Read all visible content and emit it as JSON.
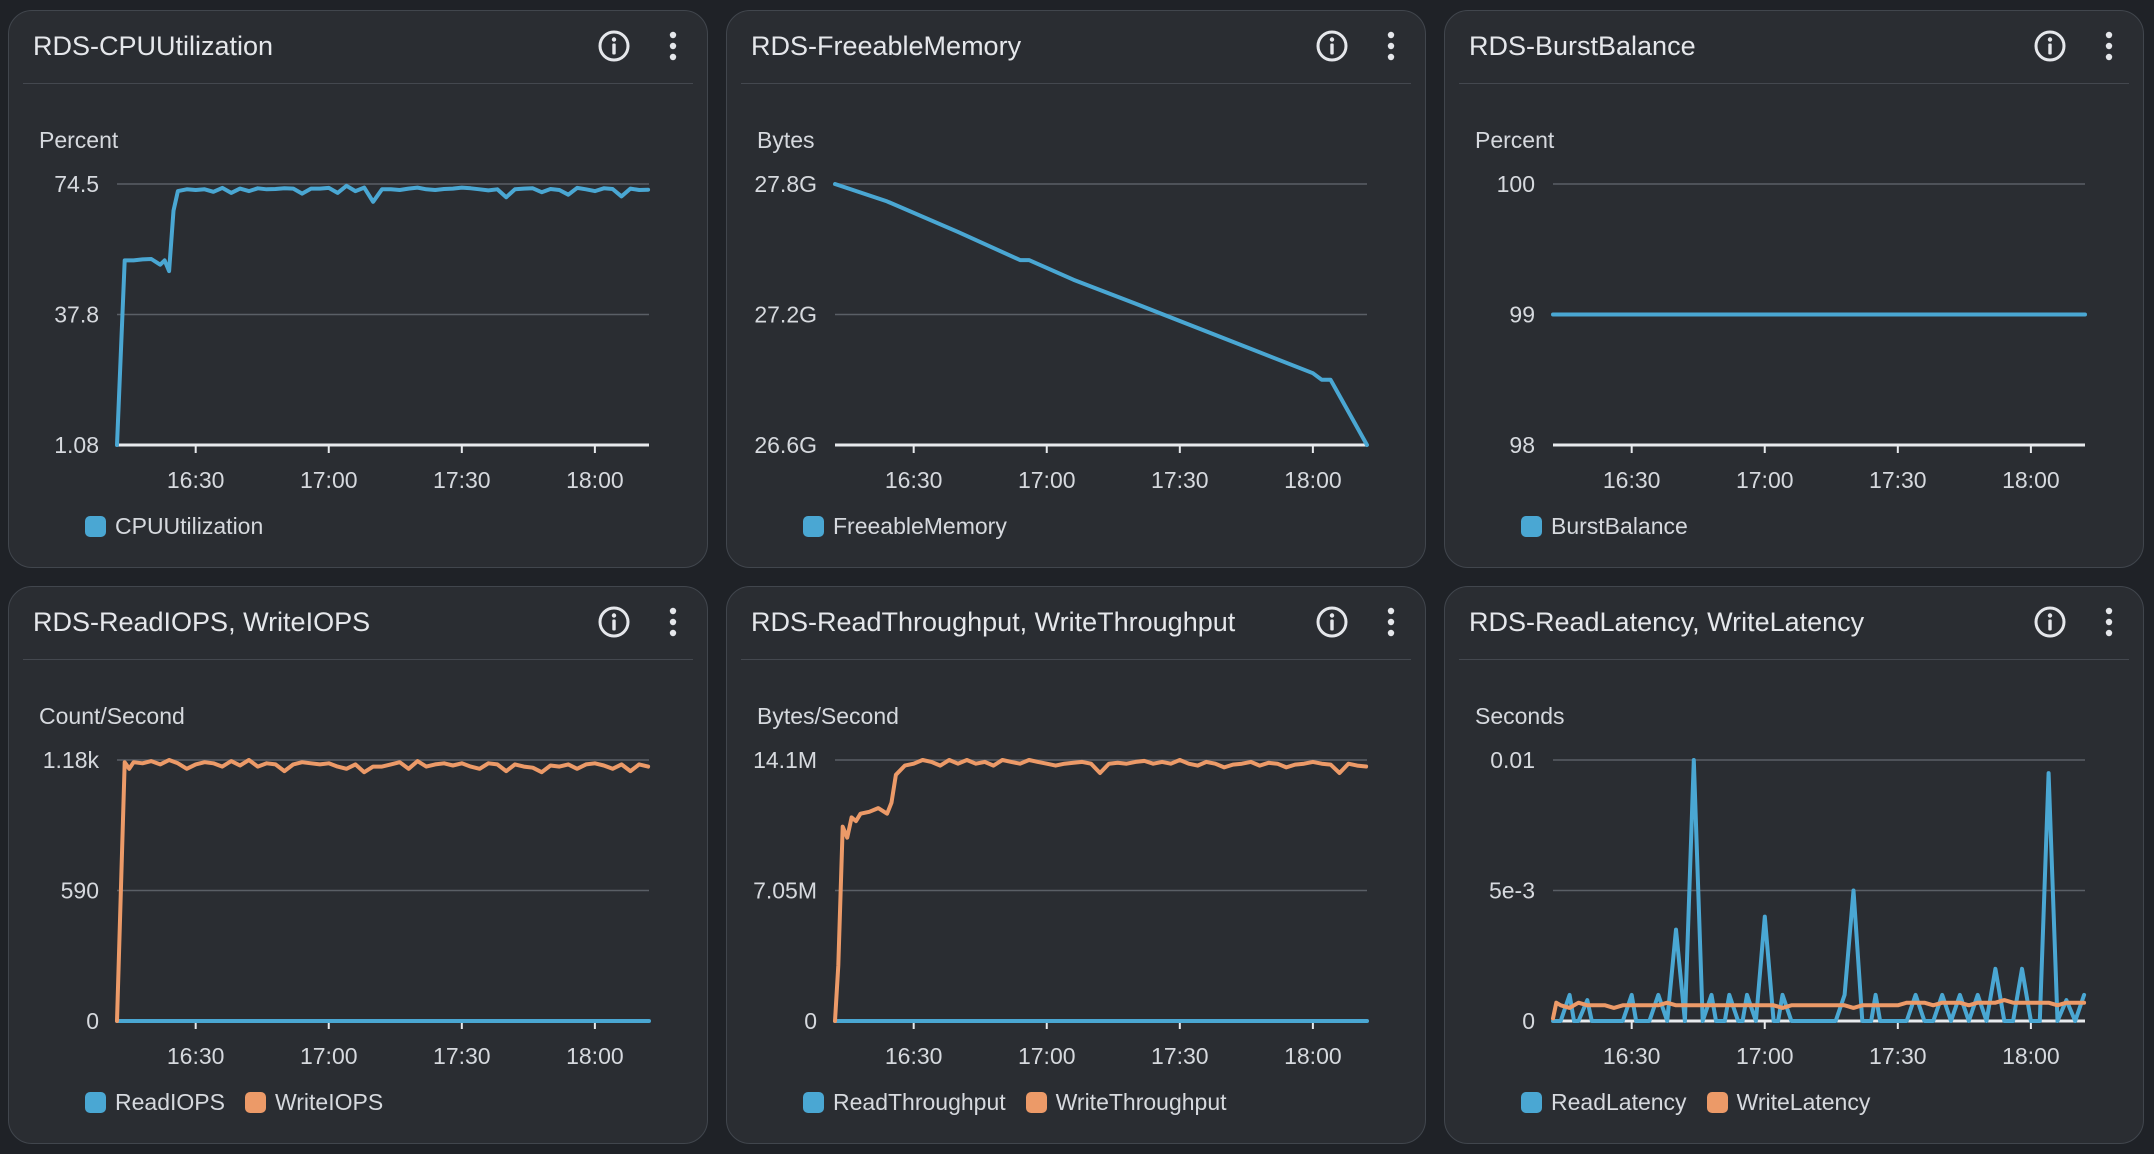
{
  "colors": {
    "blue": "#4aa7d3",
    "orange": "#ec9a68",
    "grid": "#5a5f66",
    "axis": "#e8eaed"
  },
  "icons": {
    "info": "info-circle-icon",
    "more": "more-vertical-icon"
  },
  "widgets": [
    {
      "title": "RDS-CPUUtilization",
      "unit": "Percent",
      "legend": [
        {
          "label": "CPUUtilization",
          "color": "#4aa7d3"
        }
      ],
      "chart_data": {
        "type": "line",
        "yticks": [
          "74.5",
          "37.8",
          "1.08"
        ],
        "xticks": [
          "16:30",
          "17:00",
          "17:30",
          "18:00"
        ],
        "ylim": [
          1.08,
          74.5
        ],
        "xlim": [
          6.13,
          66.1
        ],
        "series": [
          {
            "name": "CPUUtilization",
            "color": "#4aa7d3",
            "x": [
              6.13,
              7,
              8,
              9,
              10,
              11,
              11.5,
              12,
              12.5,
              13,
              14,
              15,
              16,
              17,
              18,
              19,
              20,
              21,
              22,
              23,
              24,
              25,
              26,
              27,
              28,
              29,
              30,
              31,
              32,
              33,
              34,
              35,
              36,
              37,
              38,
              39,
              40,
              41,
              42,
              43,
              44,
              45,
              46,
              47,
              48,
              49,
              50,
              51,
              52,
              53,
              54,
              55,
              56,
              57,
              58,
              59,
              60,
              61,
              62,
              63,
              64,
              65,
              66
            ],
            "y": [
              1.08,
              53,
              53,
              53.3,
              53.4,
              51.8,
              53,
              50,
              67,
              72.5,
              73,
              72.8,
              73,
              72.3,
              73.4,
              72,
              73.2,
              72.5,
              73.3,
              73,
              73.1,
              73.3,
              73.2,
              71.8,
              73.2,
              73.2,
              73.4,
              72,
              74,
              72.5,
              73.5,
              69.5,
              73,
              73,
              72.8,
              73.2,
              73.5,
              73,
              72.8,
              73.1,
              73.2,
              73.5,
              73.3,
              73,
              72.7,
              73,
              70.8,
              73,
              73.2,
              73.3,
              72.2,
              73.1,
              72.8,
              71.5,
              73.4,
              73,
              72.5,
              73.3,
              73.1,
              71,
              73.2,
              72.8,
              72.9
            ]
          }
        ]
      }
    },
    {
      "title": "RDS-FreeableMemory",
      "unit": "Bytes",
      "legend": [
        {
          "label": "FreeableMemory",
          "color": "#4aa7d3"
        }
      ],
      "chart_data": {
        "type": "line",
        "yticks": [
          "27.8G",
          "27.2G",
          "26.6G"
        ],
        "xticks": [
          "16:30",
          "17:00",
          "17:30",
          "18:00"
        ],
        "ylim": [
          26.6,
          27.8
        ],
        "xlim": [
          6.13,
          66.1
        ],
        "series": [
          {
            "name": "FreeableMemory",
            "color": "#4aa7d3",
            "x": [
              6.13,
              12,
              20,
              27,
              28,
              33,
              40,
              50,
              60,
              61,
              62,
              66.1
            ],
            "y": [
              27.8,
              27.72,
              27.58,
              27.45,
              27.45,
              27.36,
              27.25,
              27.09,
              26.93,
              26.9,
              26.9,
              26.6
            ]
          }
        ]
      }
    },
    {
      "title": "RDS-BurstBalance",
      "unit": "Percent",
      "legend": [
        {
          "label": "BurstBalance",
          "color": "#4aa7d3"
        }
      ],
      "chart_data": {
        "type": "line",
        "yticks": [
          "100",
          "99",
          "98"
        ],
        "xticks": [
          "16:30",
          "17:00",
          "17:30",
          "18:00"
        ],
        "ylim": [
          98,
          100
        ],
        "xlim": [
          6.13,
          66.1
        ],
        "series": [
          {
            "name": "BurstBalance",
            "color": "#4aa7d3",
            "x": [
              6.13,
              66.1
            ],
            "y": [
              99,
              99
            ]
          }
        ]
      }
    },
    {
      "title": "RDS-ReadIOPS, WriteIOPS",
      "unit": "Count/Second",
      "legend": [
        {
          "label": "ReadIOPS",
          "color": "#4aa7d3"
        },
        {
          "label": "WriteIOPS",
          "color": "#ec9a68"
        }
      ],
      "chart_data": {
        "type": "line",
        "yticks": [
          "1.18k",
          "590",
          "0"
        ],
        "xticks": [
          "16:30",
          "17:00",
          "17:30",
          "18:00"
        ],
        "ylim": [
          0,
          1180
        ],
        "xlim": [
          6.13,
          66.1
        ],
        "series": [
          {
            "name": "ReadIOPS",
            "color": "#4aa7d3",
            "x": [
              6.13,
              66.1
            ],
            "y": [
              0,
              0
            ]
          },
          {
            "name": "WriteIOPS",
            "color": "#ec9a68",
            "x": [
              6.13,
              7,
              7.5,
              8,
              9,
              10,
              11,
              12,
              13,
              14,
              15,
              16,
              17,
              18,
              19,
              20,
              21,
              22,
              23,
              24,
              25,
              26,
              27,
              28,
              29,
              30,
              31,
              32,
              33,
              34,
              35,
              36,
              37,
              38,
              39,
              40,
              41,
              42,
              43,
              44,
              45,
              46,
              47,
              48,
              49,
              50,
              51,
              52,
              53,
              54,
              55,
              56,
              57,
              58,
              59,
              60,
              61,
              62,
              63,
              64,
              65,
              66
            ],
            "y": [
              0,
              1170,
              1140,
              1170,
              1165,
              1175,
              1160,
              1180,
              1165,
              1140,
              1160,
              1170,
              1165,
              1150,
              1175,
              1155,
              1180,
              1150,
              1165,
              1160,
              1130,
              1160,
              1170,
              1165,
              1160,
              1165,
              1150,
              1140,
              1160,
              1125,
              1150,
              1150,
              1160,
              1170,
              1140,
              1175,
              1150,
              1160,
              1165,
              1155,
              1165,
              1150,
              1140,
              1165,
              1160,
              1130,
              1160,
              1150,
              1145,
              1125,
              1155,
              1150,
              1160,
              1140,
              1160,
              1165,
              1155,
              1140,
              1160,
              1130,
              1160,
              1150
            ]
          }
        ]
      }
    },
    {
      "title": "RDS-ReadThroughput, WriteThroughput",
      "unit": "Bytes/Second",
      "legend": [
        {
          "label": "ReadThroughput",
          "color": "#4aa7d3"
        },
        {
          "label": "WriteThroughput",
          "color": "#ec9a68"
        }
      ],
      "chart_data": {
        "type": "line",
        "yticks": [
          "14.1M",
          "7.05M",
          "0"
        ],
        "xticks": [
          "16:30",
          "17:00",
          "17:30",
          "18:00"
        ],
        "ylim": [
          0,
          14.1
        ],
        "xlim": [
          6.13,
          66.1
        ],
        "series": [
          {
            "name": "ReadThroughput",
            "color": "#4aa7d3",
            "x": [
              6.13,
              66.1
            ],
            "y": [
              0,
              0
            ]
          },
          {
            "name": "WriteThroughput",
            "color": "#ec9a68",
            "x": [
              6.13,
              6.5,
              7,
              7.5,
              8,
              8.5,
              9,
              10,
              11,
              12,
              12.5,
              13,
              14,
              15,
              16,
              17,
              18,
              19,
              20,
              21,
              22,
              23,
              24,
              25,
              26,
              27,
              28,
              29,
              30,
              31,
              32,
              33,
              34,
              35,
              36,
              37,
              38,
              39,
              40,
              41,
              42,
              43,
              44,
              45,
              46,
              47,
              48,
              49,
              50,
              51,
              52,
              53,
              54,
              55,
              56,
              57,
              58,
              59,
              60,
              61,
              62,
              63,
              64,
              65,
              66
            ],
            "y": [
              0,
              3,
              10.5,
              9.9,
              11,
              10.8,
              11.2,
              11.3,
              11.5,
              11.2,
              11.8,
              13.3,
              13.8,
              13.9,
              14.1,
              14,
              13.8,
              14.1,
              13.9,
              14.1,
              13.9,
              14,
              13.8,
              14.1,
              14,
              13.9,
              14.1,
              14,
              13.9,
              13.8,
              13.9,
              13.95,
              14,
              13.9,
              13.4,
              13.9,
              13.95,
              13.9,
              14,
              14.05,
              13.9,
              14,
              13.9,
              14.1,
              13.9,
              13.8,
              14,
              13.9,
              13.7,
              13.85,
              13.9,
              14,
              13.8,
              13.95,
              13.9,
              13.7,
              13.85,
              13.9,
              14,
              13.9,
              13.85,
              13.4,
              13.9,
              13.8,
              13.75
            ]
          }
        ]
      }
    },
    {
      "title": "RDS-ReadLatency, WriteLatency",
      "unit": "Seconds",
      "legend": [
        {
          "label": "ReadLatency",
          "color": "#4aa7d3"
        },
        {
          "label": "WriteLatency",
          "color": "#ec9a68"
        }
      ],
      "chart_data": {
        "type": "line",
        "yticks": [
          "0.01",
          "5e-3",
          "0"
        ],
        "xticks": [
          "16:30",
          "17:00",
          "17:30",
          "18:00"
        ],
        "ylim": [
          0,
          0.01
        ],
        "xlim": [
          6.13,
          66.1
        ],
        "series": [
          {
            "name": "ReadLatency",
            "color": "#4aa7d3",
            "x": [
              6.13,
              7,
              8,
              8.5,
              9,
              10,
              10.5,
              11,
              13,
              14,
              15,
              15.5,
              16,
              17,
              18,
              19,
              20,
              21,
              22,
              23,
              24,
              24.5,
              25,
              25.5,
              26,
              27,
              27.5,
              28,
              29,
              30,
              31,
              31.5,
              32,
              33,
              34,
              35,
              36,
              37,
              38,
              39,
              40,
              41,
              42,
              42.5,
              43,
              45,
              46,
              47,
              48,
              49,
              50,
              51,
              52,
              53,
              54,
              55,
              56,
              57,
              58,
              59,
              60,
              61,
              62,
              63,
              64,
              65,
              66
            ],
            "y": [
              0,
              0,
              0.001,
              0,
              0,
              0.0008,
              0,
              0,
              0,
              0,
              0.001,
              0,
              0,
              0,
              0.001,
              0,
              0.0035,
              0,
              0.01,
              0,
              0.001,
              0,
              0,
              0,
              0.001,
              0,
              0,
              0.001,
              0,
              0.004,
              0,
              0,
              0.001,
              0,
              0,
              0,
              0,
              0,
              0,
              0.001,
              0.005,
              0,
              0,
              0.001,
              0,
              0,
              0,
              0.001,
              0,
              0,
              0.001,
              0,
              0.001,
              0,
              0.001,
              0,
              0.002,
              0,
              0,
              0.002,
              0,
              0,
              0.0095,
              0,
              0.0008,
              0,
              0.001
            ]
          },
          {
            "name": "WriteLatency",
            "color": "#ec9a68",
            "x": [
              6.13,
              6.5,
              7,
              8,
              9,
              10,
              11,
              12,
              13,
              14,
              15,
              16,
              17,
              18,
              19,
              20,
              21,
              22,
              23,
              24,
              25,
              26,
              27,
              28,
              29,
              30,
              31,
              32,
              33,
              34,
              35,
              36,
              37,
              38,
              39,
              40,
              41,
              42,
              43,
              44,
              45,
              46,
              47,
              48,
              49,
              50,
              51,
              52,
              53,
              54,
              55,
              56,
              57,
              58,
              59,
              60,
              61,
              62,
              63,
              64,
              65,
              66
            ],
            "y": [
              0.0001,
              0.0007,
              0.0006,
              0.0005,
              0.0007,
              0.0006,
              0.0006,
              0.0006,
              0.0005,
              0.0006,
              0.0006,
              0.0006,
              0.0006,
              0.0006,
              0.0007,
              0.0006,
              0.0006,
              0.0006,
              0.0006,
              0.0006,
              0.0006,
              0.0006,
              0.0006,
              0.0006,
              0.0006,
              0.0006,
              0.0006,
              0.0005,
              0.0006,
              0.0006,
              0.0006,
              0.0006,
              0.0006,
              0.0006,
              0.0006,
              0.0005,
              0.0006,
              0.0006,
              0.0006,
              0.0006,
              0.0006,
              0.0007,
              0.0007,
              0.0007,
              0.0006,
              0.0007,
              0.0007,
              0.0007,
              0.0006,
              0.0007,
              0.0007,
              0.0007,
              0.0008,
              0.0007,
              0.0007,
              0.0007,
              0.0007,
              0.0007,
              0.0006,
              0.0007,
              0.0007,
              0.0007
            ]
          }
        ]
      }
    }
  ]
}
